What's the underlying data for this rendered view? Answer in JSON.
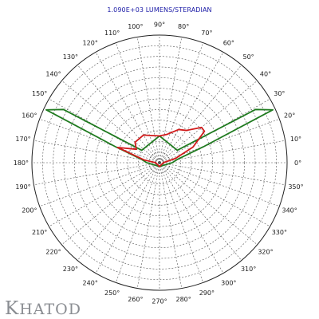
{
  "chart_data": {
    "type": "polar",
    "title": "1.090E+03 LUMENS/STERADIAN",
    "angle_unit": "degrees",
    "angle_ticks": [
      "0°",
      "10°",
      "20°",
      "30°",
      "40°",
      "50°",
      "60°",
      "70°",
      "80°",
      "90°",
      "100°",
      "110°",
      "120°",
      "130°",
      "140°",
      "150°",
      "160°",
      "170°",
      "180°",
      "190°",
      "200°",
      "210°",
      "220°",
      "230°",
      "240°",
      "250°",
      "260°",
      "270°",
      "280°",
      "290°",
      "300°",
      "310°",
      "320°",
      "330°",
      "340°",
      "350°"
    ],
    "radial_range": [
      0,
      1
    ],
    "grid": true,
    "series": [
      {
        "color": "#1f7a1f",
        "points": [
          {
            "angle": 0,
            "r": 0.1
          },
          {
            "angle": 10,
            "r": 0.14
          },
          {
            "angle": 20,
            "r": 0.37
          },
          {
            "angle": 25,
            "r": 0.98
          },
          {
            "angle": 29,
            "r": 0.86
          },
          {
            "angle": 35,
            "r": 0.17
          },
          {
            "angle": 90,
            "r": 0.21
          },
          {
            "angle": 145,
            "r": 0.17
          },
          {
            "angle": 151,
            "r": 0.86
          },
          {
            "angle": 155,
            "r": 0.98
          },
          {
            "angle": 160,
            "r": 0.37
          },
          {
            "angle": 170,
            "r": 0.14
          },
          {
            "angle": 180,
            "r": 0.1
          },
          {
            "angle": 270,
            "r": 0.03
          }
        ]
      },
      {
        "color": "#d11a1a",
        "points": [
          {
            "angle": 0,
            "r": 0.03
          },
          {
            "angle": 15,
            "r": 0.13
          },
          {
            "angle": 25,
            "r": 0.29
          },
          {
            "angle": 35,
            "r": 0.43
          },
          {
            "angle": 40,
            "r": 0.43
          },
          {
            "angle": 50,
            "r": 0.33
          },
          {
            "angle": 60,
            "r": 0.3
          },
          {
            "angle": 75,
            "r": 0.23
          },
          {
            "angle": 90,
            "r": 0.21
          },
          {
            "angle": 105,
            "r": 0.22
          },
          {
            "angle": 120,
            "r": 0.25
          },
          {
            "angle": 140,
            "r": 0.25
          },
          {
            "angle": 150,
            "r": 0.21
          },
          {
            "angle": 160,
            "r": 0.35
          },
          {
            "angle": 170,
            "r": 0.12
          },
          {
            "angle": 180,
            "r": 0.03
          },
          {
            "angle": 270,
            "r": 0.03
          }
        ]
      }
    ]
  },
  "brand": {
    "logo_text": "KHATOD",
    "logo_color": "#8a8d92"
  },
  "colors": {
    "grid": "#555555",
    "title": "#1a1aa6"
  }
}
